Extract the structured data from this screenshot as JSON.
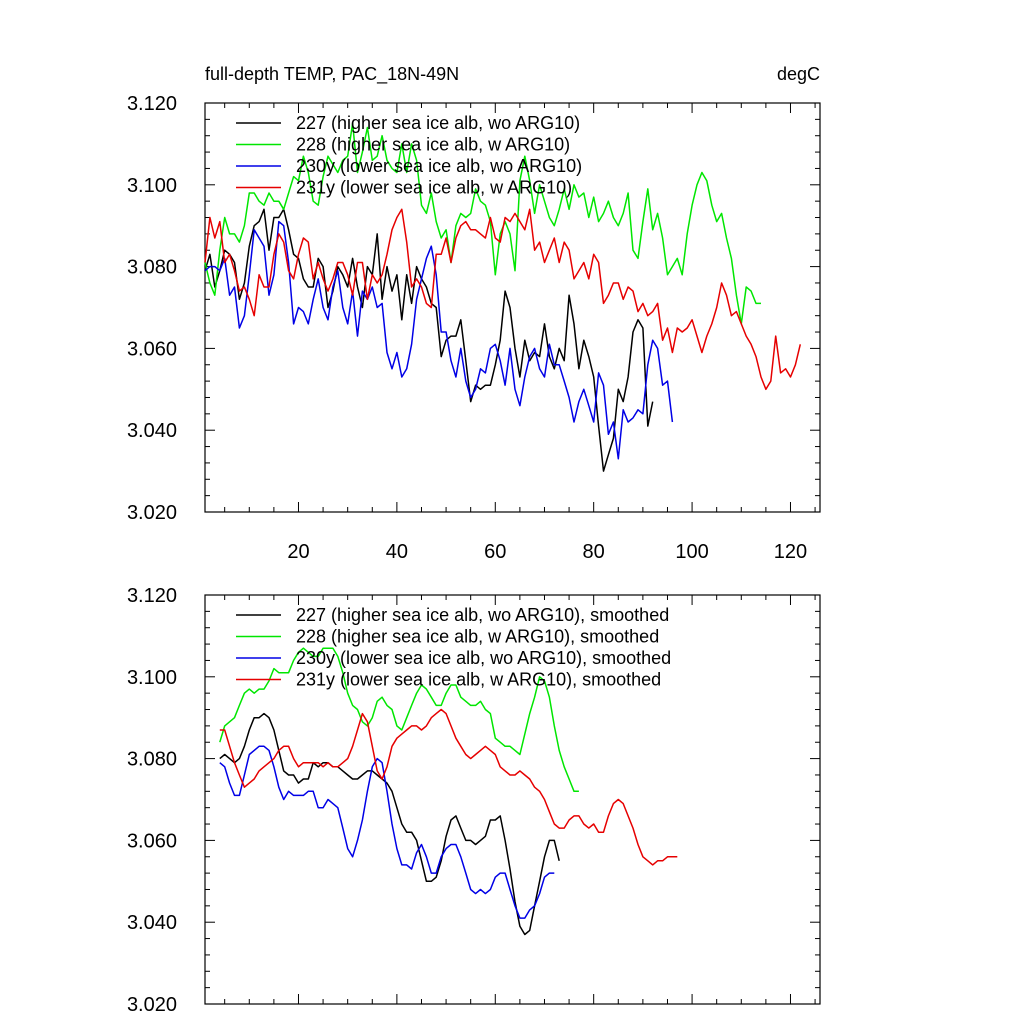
{
  "header": {
    "title": "full-depth TEMP, PAC_18N-49N",
    "units": "degC"
  },
  "colors": {
    "227": "#000000",
    "228": "#00e600",
    "230y": "#0000e6",
    "231y": "#e60000"
  },
  "chart_data": [
    {
      "type": "line",
      "title": "full-depth TEMP, PAC_18N-49N",
      "units": "degC",
      "xlim": [
        1,
        126
      ],
      "ylim": [
        3.02,
        3.12
      ],
      "xticks": [
        20,
        40,
        60,
        80,
        100,
        120
      ],
      "xtick_labels": [
        "20",
        "40",
        "60",
        "80",
        "100",
        "120"
      ],
      "yticks": [
        3.02,
        3.04,
        3.06,
        3.08,
        3.1,
        3.12
      ],
      "ytick_labels": [
        "3.020",
        "3.040",
        "3.060",
        "3.080",
        "3.100",
        "3.120"
      ],
      "legend_position": "top-left",
      "series": [
        {
          "name": "227 (higher sea ice alb, wo ARG10)",
          "color": "#000000",
          "x_start": 1,
          "values": [
            3.079,
            3.083,
            3.075,
            3.079,
            3.084,
            3.083,
            3.081,
            3.072,
            3.076,
            3.085,
            3.09,
            3.091,
            3.094,
            3.084,
            3.092,
            3.092,
            3.094,
            3.089,
            3.083,
            3.082,
            3.077,
            3.075,
            3.075,
            3.082,
            3.08,
            3.07,
            3.074,
            3.08,
            3.078,
            3.075,
            3.082,
            3.075,
            3.07,
            3.08,
            3.078,
            3.088,
            3.072,
            3.08,
            3.074,
            3.078,
            3.067,
            3.078,
            3.071,
            3.08,
            3.077,
            3.075,
            3.071,
            3.07,
            3.058,
            3.062,
            3.063,
            3.063,
            3.067,
            3.057,
            3.047,
            3.051,
            3.05,
            3.051,
            3.051,
            3.056,
            3.062,
            3.074,
            3.07,
            3.06,
            3.053,
            3.062,
            3.057,
            3.059,
            3.058,
            3.066,
            3.058,
            3.055,
            3.06,
            3.057,
            3.073,
            3.066,
            3.055,
            3.062,
            3.058,
            3.053,
            3.041,
            3.03,
            3.034,
            3.038,
            3.05,
            3.047,
            3.053,
            3.064,
            3.067,
            3.065,
            3.041,
            3.047
          ]
        },
        {
          "name": "228 (higher sea ice alb, w ARG10)",
          "color": "#00e600",
          "x_start": 1,
          "values": [
            3.081,
            3.076,
            3.073,
            3.084,
            3.092,
            3.088,
            3.088,
            3.086,
            3.09,
            3.098,
            3.098,
            3.096,
            3.095,
            3.098,
            3.096,
            3.096,
            3.094,
            3.098,
            3.102,
            3.101,
            3.107,
            3.103,
            3.096,
            3.095,
            3.102,
            3.107,
            3.105,
            3.103,
            3.106,
            3.107,
            3.115,
            3.103,
            3.108,
            3.114,
            3.106,
            3.107,
            3.112,
            3.106,
            3.104,
            3.103,
            3.11,
            3.103,
            3.11,
            3.106,
            3.095,
            3.093,
            3.098,
            3.091,
            3.087,
            3.089,
            3.081,
            3.09,
            3.093,
            3.092,
            3.093,
            3.099,
            3.096,
            3.095,
            3.091,
            3.078,
            3.088,
            3.091,
            3.088,
            3.079,
            3.101,
            3.107,
            3.101,
            3.093,
            3.1,
            3.096,
            3.092,
            3.09,
            3.094,
            3.099,
            3.094,
            3.1,
            3.097,
            3.098,
            3.092,
            3.097,
            3.091,
            3.093,
            3.096,
            3.092,
            3.09,
            3.093,
            3.098,
            3.084,
            3.082,
            3.091,
            3.099,
            3.089,
            3.093,
            3.087,
            3.078,
            3.08,
            3.082,
            3.078,
            3.088,
            3.095,
            3.1,
            3.103,
            3.101,
            3.095,
            3.091,
            3.093,
            3.087,
            3.082,
            3.073,
            3.066,
            3.075,
            3.074,
            3.071,
            3.071
          ]
        },
        {
          "name": "230y (lower sea ice alb, wo ARG10)",
          "color": "#0000e6",
          "x_start": 1,
          "values": [
            3.079,
            3.08,
            3.08,
            3.079,
            3.082,
            3.073,
            3.075,
            3.065,
            3.068,
            3.078,
            3.089,
            3.087,
            3.085,
            3.073,
            3.078,
            3.091,
            3.09,
            3.081,
            3.066,
            3.07,
            3.069,
            3.066,
            3.072,
            3.077,
            3.07,
            3.067,
            3.075,
            3.079,
            3.07,
            3.066,
            3.074,
            3.063,
            3.074,
            3.072,
            3.075,
            3.07,
            3.071,
            3.059,
            3.055,
            3.059,
            3.053,
            3.055,
            3.061,
            3.072,
            3.077,
            3.082,
            3.085,
            3.078,
            3.064,
            3.064,
            3.057,
            3.053,
            3.06,
            3.052,
            3.048,
            3.05,
            3.055,
            3.054,
            3.06,
            3.061,
            3.057,
            3.051,
            3.06,
            3.05,
            3.046,
            3.053,
            3.058,
            3.06,
            3.055,
            3.053,
            3.061,
            3.056,
            3.056,
            3.052,
            3.048,
            3.042,
            3.047,
            3.05,
            3.046,
            3.042,
            3.054,
            3.051,
            3.039,
            3.042,
            3.033,
            3.045,
            3.042,
            3.043,
            3.045,
            3.044,
            3.056,
            3.062,
            3.06,
            3.051,
            3.052,
            3.042
          ]
        },
        {
          "name": "231y (lower sea ice alb, w ARG10)",
          "color": "#e60000",
          "x_start": 1,
          "values": [
            3.081,
            3.092,
            3.087,
            3.091,
            3.081,
            3.083,
            3.079,
            3.074,
            3.075,
            3.072,
            3.068,
            3.078,
            3.075,
            3.075,
            3.083,
            3.088,
            3.086,
            3.079,
            3.077,
            3.083,
            3.087,
            3.086,
            3.077,
            3.081,
            3.077,
            3.074,
            3.077,
            3.081,
            3.081,
            3.078,
            3.073,
            3.081,
            3.081,
            3.072,
            3.078,
            3.076,
            3.078,
            3.083,
            3.089,
            3.092,
            3.094,
            3.086,
            3.075,
            3.077,
            3.075,
            3.071,
            3.07,
            3.083,
            3.083,
            3.087,
            3.081,
            3.087,
            3.09,
            3.091,
            3.089,
            3.089,
            3.088,
            3.087,
            3.092,
            3.087,
            3.086,
            3.092,
            3.091,
            3.093,
            3.091,
            3.089,
            3.094,
            3.084,
            3.086,
            3.081,
            3.084,
            3.087,
            3.081,
            3.086,
            3.084,
            3.077,
            3.079,
            3.081,
            3.077,
            3.083,
            3.081,
            3.071,
            3.073,
            3.076,
            3.076,
            3.072,
            3.075,
            3.074,
            3.069,
            3.071,
            3.068,
            3.069,
            3.071,
            3.062,
            3.065,
            3.059,
            3.065,
            3.064,
            3.065,
            3.067,
            3.063,
            3.059,
            3.063,
            3.066,
            3.07,
            3.076,
            3.073,
            3.068,
            3.069,
            3.066,
            3.063,
            3.061,
            3.058,
            3.053,
            3.05,
            3.052,
            3.063,
            3.054,
            3.055,
            3.053,
            3.056,
            3.061
          ]
        }
      ]
    },
    {
      "type": "line",
      "title": "",
      "xlim": [
        1,
        126
      ],
      "ylim": [
        3.02,
        3.12
      ],
      "xticks": [
        20,
        40,
        60,
        80,
        100,
        120
      ],
      "xtick_labels": [],
      "yticks": [
        3.02,
        3.04,
        3.06,
        3.08,
        3.1,
        3.12
      ],
      "ytick_labels": [
        "3.020",
        "3.040",
        "3.060",
        "3.080",
        "3.100",
        "3.120"
      ],
      "legend_position": "top-left",
      "series": [
        {
          "name": "227 (higher sea ice alb, wo ARG10), smoothed",
          "color": "#000000",
          "x_start": 4,
          "values": [
            3.08,
            3.081,
            3.08,
            3.079,
            3.08,
            3.083,
            3.087,
            3.09,
            3.09,
            3.091,
            3.09,
            3.087,
            3.082,
            3.077,
            3.076,
            3.076,
            3.074,
            3.075,
            3.075,
            3.079,
            3.078,
            3.079,
            3.079,
            3.078,
            3.078,
            3.077,
            3.076,
            3.075,
            3.075,
            3.076,
            3.077,
            3.077,
            3.076,
            3.075,
            3.074,
            3.072,
            3.068,
            3.064,
            3.062,
            3.062,
            3.06,
            3.055,
            3.05,
            3.05,
            3.051,
            3.055,
            3.061,
            3.065,
            3.066,
            3.063,
            3.06,
            3.06,
            3.059,
            3.06,
            3.061,
            3.065,
            3.065,
            3.066,
            3.06,
            3.053,
            3.045,
            3.039,
            3.037,
            3.038,
            3.044,
            3.05,
            3.056,
            3.06,
            3.06,
            3.055
          ]
        },
        {
          "name": "228 (higher sea ice alb, w ARG10), smoothed",
          "color": "#00e600",
          "x_start": 4,
          "values": [
            3.084,
            3.088,
            3.089,
            3.09,
            3.093,
            3.096,
            3.097,
            3.096,
            3.097,
            3.097,
            3.099,
            3.102,
            3.101,
            3.101,
            3.101,
            3.104,
            3.106,
            3.107,
            3.106,
            3.105,
            3.105,
            3.107,
            3.107,
            3.107,
            3.105,
            3.101,
            3.096,
            3.093,
            3.092,
            3.089,
            3.088,
            3.09,
            3.094,
            3.095,
            3.093,
            3.092,
            3.088,
            3.087,
            3.09,
            3.093,
            3.096,
            3.098,
            3.097,
            3.095,
            3.093,
            3.093,
            3.096,
            3.098,
            3.098,
            3.095,
            3.094,
            3.093,
            3.093,
            3.094,
            3.092,
            3.091,
            3.085,
            3.084,
            3.083,
            3.083,
            3.082,
            3.081,
            3.086,
            3.091,
            3.095,
            3.1,
            3.099,
            3.095,
            3.088,
            3.082,
            3.078,
            3.075,
            3.072,
            3.072
          ]
        },
        {
          "name": "230y (lower sea ice alb, wo ARG10), smoothed",
          "color": "#0000e6",
          "x_start": 4,
          "values": [
            3.079,
            3.078,
            3.074,
            3.071,
            3.071,
            3.076,
            3.081,
            3.082,
            3.083,
            3.083,
            3.082,
            3.078,
            3.073,
            3.07,
            3.072,
            3.071,
            3.071,
            3.071,
            3.072,
            3.072,
            3.068,
            3.068,
            3.07,
            3.069,
            3.068,
            3.063,
            3.058,
            3.056,
            3.06,
            3.065,
            3.072,
            3.078,
            3.08,
            3.079,
            3.072,
            3.064,
            3.058,
            3.054,
            3.054,
            3.053,
            3.057,
            3.059,
            3.056,
            3.052,
            3.052,
            3.056,
            3.058,
            3.059,
            3.059,
            3.056,
            3.052,
            3.048,
            3.047,
            3.048,
            3.047,
            3.048,
            3.051,
            3.052,
            3.052,
            3.048,
            3.044,
            3.041,
            3.041,
            3.043,
            3.044,
            3.047,
            3.051,
            3.052,
            3.052
          ]
        },
        {
          "name": "231y (lower sea ice alb, w ARG10), smoothed",
          "color": "#e60000",
          "x_start": 4,
          "values": [
            3.087,
            3.087,
            3.083,
            3.079,
            3.076,
            3.073,
            3.074,
            3.075,
            3.077,
            3.078,
            3.079,
            3.08,
            3.082,
            3.083,
            3.083,
            3.08,
            3.078,
            3.079,
            3.079,
            3.079,
            3.079,
            3.078,
            3.079,
            3.078,
            3.078,
            3.079,
            3.08,
            3.083,
            3.087,
            3.091,
            3.089,
            3.083,
            3.077,
            3.075,
            3.078,
            3.083,
            3.085,
            3.086,
            3.087,
            3.088,
            3.088,
            3.087,
            3.088,
            3.09,
            3.091,
            3.092,
            3.091,
            3.088,
            3.085,
            3.083,
            3.081,
            3.08,
            3.081,
            3.082,
            3.083,
            3.082,
            3.081,
            3.078,
            3.077,
            3.076,
            3.076,
            3.077,
            3.076,
            3.075,
            3.073,
            3.072,
            3.07,
            3.067,
            3.064,
            3.063,
            3.063,
            3.065,
            3.066,
            3.066,
            3.064,
            3.063,
            3.064,
            3.062,
            3.062,
            3.066,
            3.069,
            3.07,
            3.069,
            3.066,
            3.063,
            3.059,
            3.056,
            3.055,
            3.054,
            3.055,
            3.055,
            3.056,
            3.056,
            3.056
          ]
        }
      ]
    }
  ]
}
